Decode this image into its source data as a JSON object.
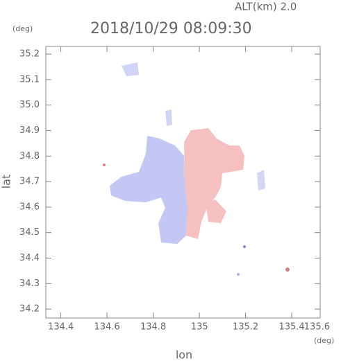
{
  "chart_data": {
    "type": "field",
    "title": "2018/10/29 08:09:30",
    "subtitle": "ALT(km) 2.0",
    "x_label": "lon",
    "y_label": "lat",
    "x_unit": "(deg)",
    "y_unit": "(deg)",
    "xlim": [
      134.335,
      135.523
    ],
    "xticks": [
      134.4,
      134.6,
      134.8,
      135.0,
      135.2,
      135.4,
      135.6
    ],
    "ylim": [
      34.165,
      35.23
    ],
    "yticks": [
      34.2,
      34.3,
      34.4,
      34.5,
      34.6,
      34.7,
      34.8,
      34.9,
      {
        "value": 35.0,
        "label": "35.0"
      },
      35.1,
      35.2
    ]
  }
}
